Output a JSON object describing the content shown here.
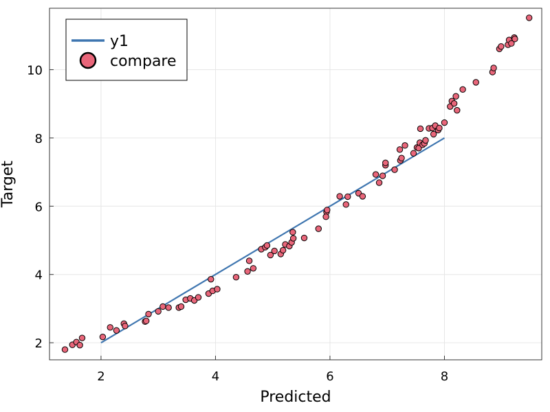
{
  "chart_data": {
    "type": "scatter",
    "xlabel": "Predicted",
    "ylabel": "Target",
    "xlim": [
      1.1,
      9.7
    ],
    "ylim": [
      1.5,
      11.8
    ],
    "xticks": [
      2,
      4,
      6,
      8
    ],
    "yticks": [
      2,
      4,
      6,
      8,
      10
    ],
    "xtick_labels": [
      "2",
      "4",
      "6",
      "8"
    ],
    "ytick_labels": [
      "2",
      "4",
      "6",
      "8",
      "10"
    ],
    "grid": true,
    "legend_position": "top-left",
    "series": [
      {
        "name": "y1",
        "kind": "line",
        "color": "#3f76b0",
        "x": [
          2,
          8
        ],
        "y": [
          2,
          8
        ]
      },
      {
        "name": "compare",
        "kind": "scatter",
        "color": "#e9667a",
        "edge_color": "#000000",
        "points": [
          [
            1.37,
            1.8
          ],
          [
            1.5,
            1.94
          ],
          [
            1.57,
            2.02
          ],
          [
            1.63,
            1.93
          ],
          [
            1.67,
            2.14
          ],
          [
            2.03,
            2.17
          ],
          [
            2.16,
            2.45
          ],
          [
            2.27,
            2.36
          ],
          [
            2.4,
            2.56
          ],
          [
            2.42,
            2.49
          ],
          [
            2.77,
            2.62
          ],
          [
            2.79,
            2.64
          ],
          [
            2.83,
            2.84
          ],
          [
            3.0,
            2.92
          ],
          [
            3.08,
            3.06
          ],
          [
            3.18,
            3.03
          ],
          [
            3.36,
            3.03
          ],
          [
            3.4,
            3.06
          ],
          [
            3.48,
            3.26
          ],
          [
            3.56,
            3.3
          ],
          [
            3.63,
            3.24
          ],
          [
            3.7,
            3.33
          ],
          [
            3.88,
            3.44
          ],
          [
            3.95,
            3.52
          ],
          [
            4.03,
            3.57
          ],
          [
            3.92,
            3.86
          ],
          [
            4.36,
            3.92
          ],
          [
            4.56,
            4.09
          ],
          [
            4.59,
            4.4
          ],
          [
            4.66,
            4.18
          ],
          [
            4.8,
            4.74
          ],
          [
            4.87,
            4.8
          ],
          [
            4.9,
            4.85
          ],
          [
            4.96,
            4.57
          ],
          [
            5.03,
            4.69
          ],
          [
            5.14,
            4.6
          ],
          [
            5.18,
            4.71
          ],
          [
            5.22,
            4.88
          ],
          [
            5.29,
            4.83
          ],
          [
            5.33,
            4.94
          ],
          [
            5.36,
            5.06
          ],
          [
            5.35,
            5.24
          ],
          [
            5.55,
            5.07
          ],
          [
            5.8,
            5.34
          ],
          [
            5.94,
            5.83
          ],
          [
            5.93,
            5.69
          ],
          [
            5.95,
            5.89
          ],
          [
            6.17,
            6.29
          ],
          [
            6.28,
            6.05
          ],
          [
            6.31,
            6.28
          ],
          [
            6.5,
            6.38
          ],
          [
            6.57,
            6.29
          ],
          [
            6.8,
            6.93
          ],
          [
            6.86,
            6.69
          ],
          [
            6.92,
            6.89
          ],
          [
            6.97,
            7.2
          ],
          [
            6.97,
            7.27
          ],
          [
            7.13,
            7.07
          ],
          [
            7.23,
            7.34
          ],
          [
            7.22,
            7.66
          ],
          [
            7.25,
            7.41
          ],
          [
            7.31,
            7.78
          ],
          [
            7.46,
            7.55
          ],
          [
            7.52,
            7.72
          ],
          [
            7.55,
            7.7
          ],
          [
            7.57,
            7.86
          ],
          [
            7.58,
            8.27
          ],
          [
            7.62,
            7.8
          ],
          [
            7.65,
            7.84
          ],
          [
            7.67,
            7.93
          ],
          [
            7.73,
            8.28
          ],
          [
            7.79,
            8.29
          ],
          [
            7.81,
            8.11
          ],
          [
            7.84,
            8.36
          ],
          [
            7.89,
            8.23
          ],
          [
            7.91,
            8.29
          ],
          [
            8.0,
            8.45
          ],
          [
            8.1,
            8.92
          ],
          [
            8.13,
            9.08
          ],
          [
            8.17,
            9.01
          ],
          [
            8.2,
            9.22
          ],
          [
            8.22,
            8.81
          ],
          [
            8.32,
            9.42
          ],
          [
            8.55,
            9.63
          ],
          [
            8.84,
            9.93
          ],
          [
            8.86,
            10.05
          ],
          [
            8.96,
            10.61
          ],
          [
            8.99,
            10.68
          ],
          [
            9.11,
            10.73
          ],
          [
            9.13,
            10.87
          ],
          [
            9.17,
            10.77
          ],
          [
            9.22,
            10.94
          ],
          [
            9.23,
            10.9
          ],
          [
            9.48,
            11.52
          ]
        ]
      }
    ]
  }
}
